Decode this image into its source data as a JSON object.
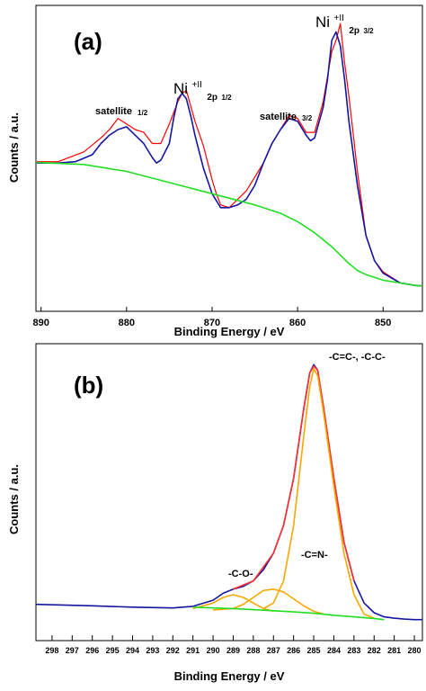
{
  "chart_data": [
    {
      "type": "line",
      "panel_label": "(a)",
      "xlabel": "Binding Energy / eV",
      "ylabel": "Counts / a.u.",
      "xlim": [
        890.6,
        845.4
      ],
      "x_reversed": true,
      "ylim": [
        0,
        100
      ],
      "xticks": [
        890,
        880,
        870,
        860,
        850
      ],
      "grid": false,
      "series": [
        {
          "color": "#ff0000",
          "role": "measured",
          "x": [
            890.5,
            888,
            885,
            883,
            882,
            881,
            880,
            879,
            878,
            877,
            876,
            875,
            874,
            873.5,
            873,
            872,
            871,
            870,
            869.5,
            869,
            868,
            866,
            864,
            863,
            862,
            861,
            860,
            859,
            858,
            857,
            856,
            855.5,
            855,
            854.5,
            854,
            853,
            852,
            851,
            850,
            848,
            846,
            845.5
          ],
          "y": [
            48.5,
            48.5,
            52,
            57,
            60,
            64,
            62,
            60,
            59,
            55,
            55,
            62,
            70,
            73,
            74,
            63,
            54,
            42,
            37,
            33,
            32,
            38,
            48,
            55,
            60,
            65,
            64,
            59,
            59,
            70,
            88,
            92,
            98,
            84,
            72,
            45,
            22,
            13,
            9,
            5,
            4,
            4
          ]
        },
        {
          "color": "#1515a0",
          "role": "fit",
          "x": [
            890.5,
            888,
            886,
            884,
            883,
            882,
            881,
            880,
            879,
            878,
            877,
            876.5,
            876,
            875,
            874.5,
            874,
            873.5,
            873,
            872.5,
            872,
            871,
            870,
            869,
            868,
            867,
            866,
            865,
            864,
            863,
            862,
            861,
            860,
            859,
            858.5,
            858,
            857,
            856.5,
            856,
            855.5,
            855,
            854.5,
            854,
            853,
            852,
            851,
            850,
            848,
            846,
            845.5
          ],
          "y": [
            48,
            48,
            48.5,
            51,
            55,
            58,
            60,
            61,
            58,
            55,
            50,
            48,
            49,
            55,
            64,
            71,
            73,
            71,
            65,
            58,
            46,
            37,
            32,
            32,
            33,
            35,
            40,
            48,
            55,
            60,
            64,
            63,
            58,
            56,
            57,
            68,
            78,
            92,
            95,
            90,
            78,
            63,
            40,
            22,
            13,
            8.5,
            5,
            4,
            4
          ]
        },
        {
          "color": "#22dd22",
          "role": "background",
          "x": [
            890.5,
            885,
            880,
            875,
            870,
            865,
            862,
            860,
            858,
            856,
            854,
            853,
            852,
            851,
            850,
            848,
            846,
            845.5
          ],
          "y": [
            48.2,
            47.5,
            45,
            41,
            37,
            33,
            30,
            27,
            23,
            18,
            12,
            9.5,
            8,
            7,
            6,
            5,
            4,
            4
          ]
        }
      ],
      "annotations": [
        {
          "base": "Ni",
          "sup": "+II",
          "sub": "2p",
          "sub_small": "1/2"
        },
        {
          "base": "Ni",
          "sup": "+II",
          "sub": "2p",
          "sub_small": "3/2"
        },
        {
          "text": "satellite",
          "sub": "1/2"
        },
        {
          "text": "satellite",
          "sub": "3/2"
        }
      ]
    },
    {
      "type": "line",
      "panel_label": "(b)",
      "xlabel": "Binding Energy / eV",
      "ylabel": "Counts / a.u.",
      "xlim": [
        298.8,
        279.6
      ],
      "x_reversed": true,
      "ylim": [
        0,
        100
      ],
      "xticks": [
        298,
        297,
        296,
        295,
        294,
        293,
        292,
        291,
        290,
        289,
        288,
        287,
        286,
        285,
        284,
        283,
        282,
        281,
        280
      ],
      "grid": false,
      "series": [
        {
          "color": "#1515a0",
          "role": "measured",
          "x": [
            298.8,
            296,
            294,
            292,
            291,
            290,
            289.5,
            289,
            288.5,
            288,
            287.5,
            287,
            286.5,
            286,
            285.5,
            285.2,
            285,
            284.8,
            284.5,
            284,
            283.5,
            283,
            282.5,
            282,
            281.5,
            281,
            280.5,
            280,
            279.6
          ],
          "y": [
            9.5,
            9,
            8.5,
            8.2,
            8.8,
            11,
            13.5,
            15,
            16,
            18,
            22,
            28,
            38,
            55,
            80,
            93,
            96,
            94,
            80,
            55,
            32,
            18,
            10,
            6.5,
            5,
            4.5,
            4.2,
            4,
            4
          ]
        },
        {
          "color": "#ff3030",
          "role": "fit",
          "x": [
            289,
            288,
            287,
            286.5,
            286,
            285.5,
            285.2,
            285,
            284.8,
            284.5,
            284,
            283.5,
            283
          ],
          "y": [
            15,
            18,
            28,
            38,
            55,
            80,
            93,
            95.5,
            94,
            80,
            55,
            32,
            18
          ]
        },
        {
          "color": "#f5a800",
          "role": "component",
          "name": "-C=C-, -C-C-",
          "x": [
            287.5,
            287,
            286.5,
            286,
            285.5,
            285.2,
            285,
            284.8,
            284.5,
            284,
            283.5,
            283,
            282.5,
            282
          ],
          "y": [
            8,
            10,
            18,
            38,
            70,
            88,
            94.5,
            92,
            78,
            52,
            28,
            13,
            6,
            4.5
          ]
        },
        {
          "color": "#f5a800",
          "role": "component",
          "name": "-C=N-",
          "x": [
            290,
            289,
            288.5,
            288,
            287.5,
            287,
            286.5,
            286,
            285.5,
            285,
            284.5
          ],
          "y": [
            7.5,
            8,
            9.5,
            12,
            14.5,
            15,
            14,
            11.5,
            9,
            7,
            6
          ]
        },
        {
          "color": "#f5a800",
          "role": "component",
          "name": "-C-O-",
          "x": [
            291,
            290,
            289.5,
            289,
            288.5,
            288,
            287.5,
            287
          ],
          "y": [
            8,
            10,
            12,
            13,
            12,
            10,
            8,
            7
          ]
        },
        {
          "color": "#22dd22",
          "role": "background",
          "x": [
            291,
            290,
            289,
            288,
            287,
            286,
            285,
            284,
            283,
            282,
            281.5
          ],
          "y": [
            8.5,
            8.2,
            8,
            7.6,
            7.2,
            6.8,
            6.3,
            5.6,
            5,
            4.4,
            4
          ]
        }
      ],
      "annotations": [
        {
          "text": "-C=C-, -C-C-"
        },
        {
          "text": "-C=N-"
        },
        {
          "text": "-C-O-"
        }
      ]
    }
  ]
}
